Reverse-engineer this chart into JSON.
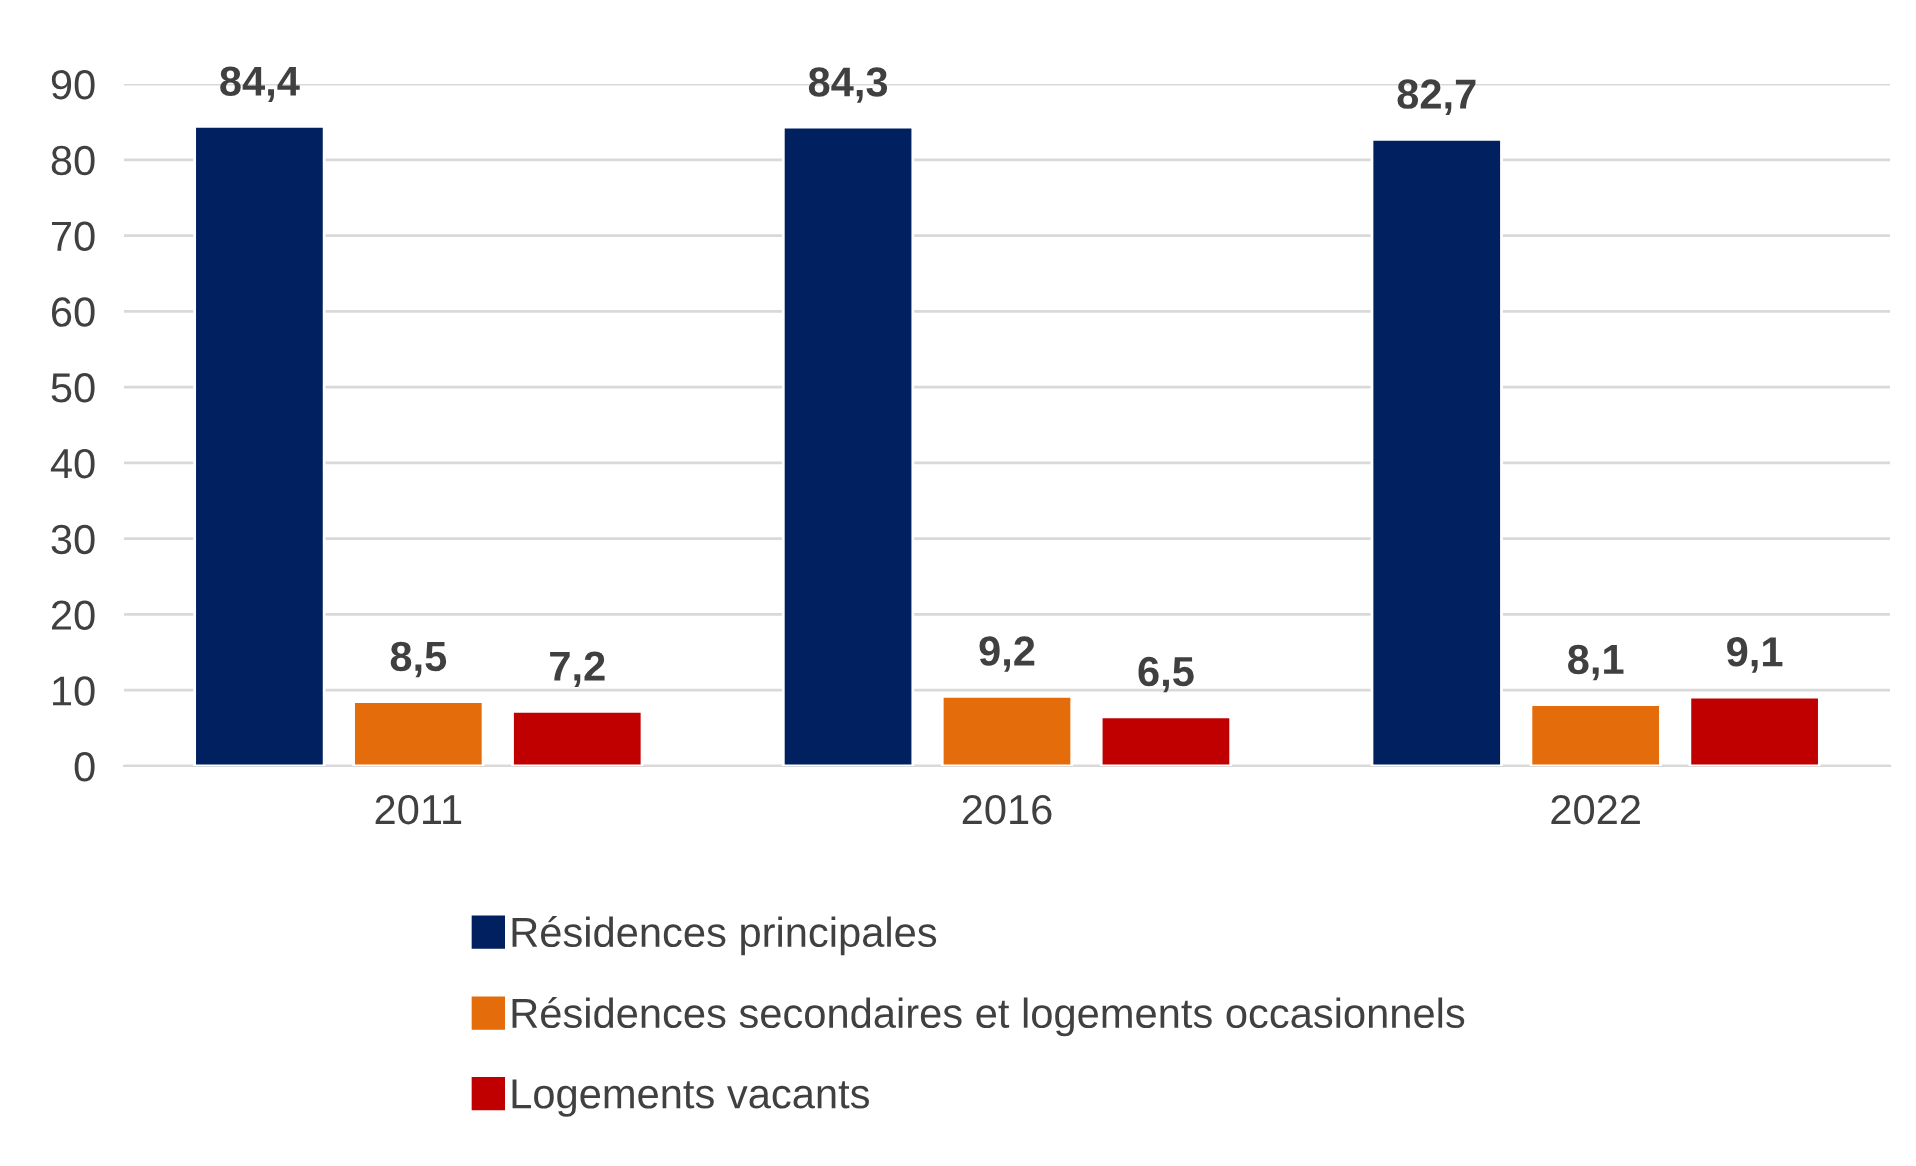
{
  "chart_data": {
    "type": "bar",
    "categories": [
      "2011",
      "2016",
      "2022"
    ],
    "series": [
      {
        "name": "Résidences principales",
        "color": "#002060",
        "values": [
          84.4,
          84.3,
          82.7
        ],
        "value_labels": [
          "84,4",
          "84,3",
          "82,7"
        ]
      },
      {
        "name": "Résidences secondaires et logements occasionnels",
        "color": "#e46c0a",
        "values": [
          8.5,
          9.2,
          8.1
        ],
        "value_labels": [
          "8,5",
          "9,2",
          "8,1"
        ]
      },
      {
        "name": "Logements vacants",
        "color": "#c00000",
        "values": [
          7.2,
          6.5,
          9.1
        ],
        "value_labels": [
          "7,2",
          "6,5",
          "9,1"
        ]
      }
    ],
    "ylim": [
      0,
      90
    ],
    "yticks": [
      0,
      10,
      20,
      30,
      40,
      50,
      60,
      70,
      80,
      90
    ],
    "grid": "y",
    "legend": "bottom"
  }
}
